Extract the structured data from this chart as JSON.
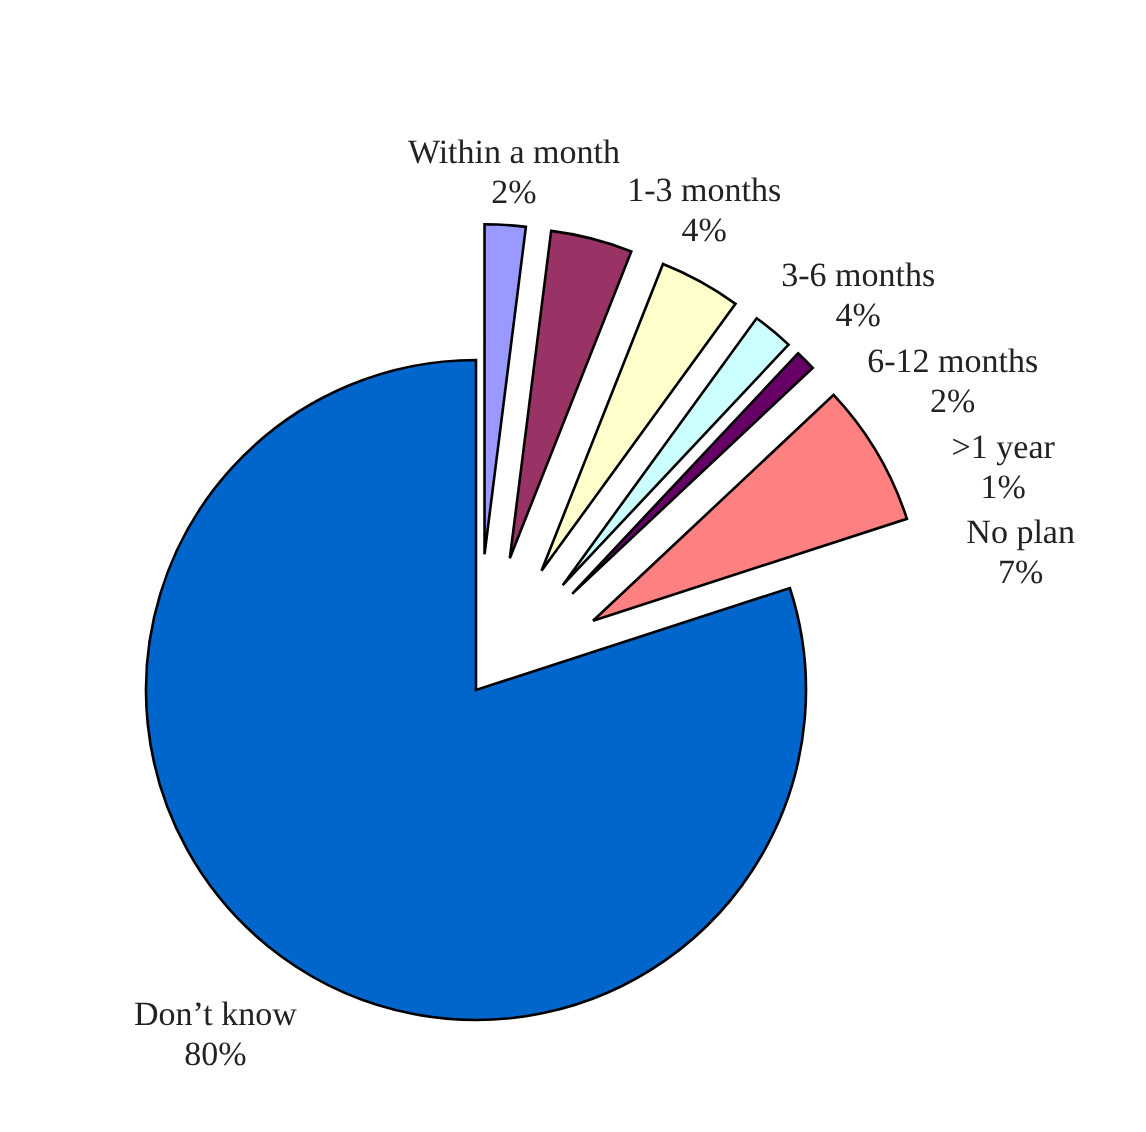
{
  "chart_data": {
    "type": "pie",
    "categories": [
      "Within a month",
      "1-3 months",
      "3-6 months",
      "6-12 months",
      ">1 year",
      "No plan",
      "Don’t know"
    ],
    "values": [
      2,
      4,
      4,
      2,
      1,
      7,
      80
    ],
    "colors": [
      "#9999ff",
      "#993366",
      "#ffffcc",
      "#ccffff",
      "#660066",
      "#ff8080",
      "#0066cc"
    ],
    "value_labels": [
      "2%",
      "4%",
      "4%",
      "2%",
      "1%",
      "7%",
      "80%"
    ]
  }
}
